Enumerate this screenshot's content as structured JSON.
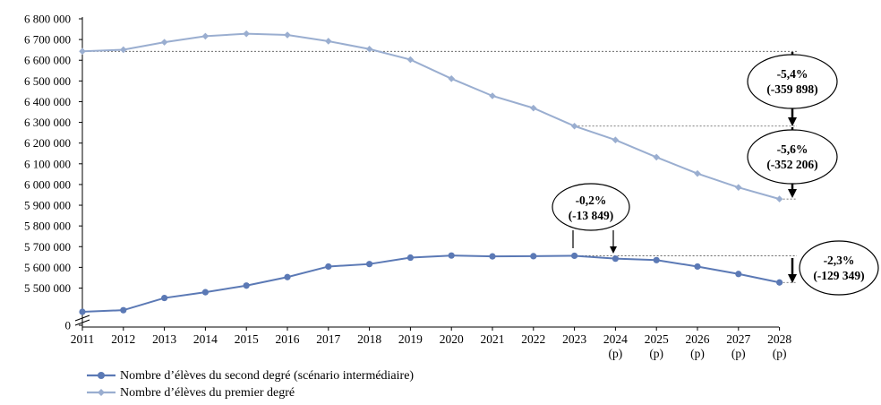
{
  "chart_data": {
    "type": "line",
    "x_labels": [
      {
        "year": "2011",
        "sub": ""
      },
      {
        "year": "2012",
        "sub": ""
      },
      {
        "year": "2013",
        "sub": ""
      },
      {
        "year": "2014",
        "sub": ""
      },
      {
        "year": "2015",
        "sub": ""
      },
      {
        "year": "2016",
        "sub": ""
      },
      {
        "year": "2017",
        "sub": ""
      },
      {
        "year": "2018",
        "sub": ""
      },
      {
        "year": "2019",
        "sub": ""
      },
      {
        "year": "2020",
        "sub": ""
      },
      {
        "year": "2021",
        "sub": ""
      },
      {
        "year": "2022",
        "sub": ""
      },
      {
        "year": "2023",
        "sub": ""
      },
      {
        "year": "2024",
        "sub": "(p)"
      },
      {
        "year": "2025",
        "sub": "(p)"
      },
      {
        "year": "2026",
        "sub": "(p)"
      },
      {
        "year": "2027",
        "sub": "(p)"
      },
      {
        "year": "2028",
        "sub": "(p)"
      }
    ],
    "y_ticks": [
      "0",
      "5 500 000",
      "5 600 000",
      "5 700 000",
      "5 800 000",
      "5 900 000",
      "6 000 000",
      "6 100 000",
      "6 200 000",
      "6 300 000",
      "6 400 000",
      "6 500 000",
      "6 600 000",
      "6 700 000",
      "6 800 000"
    ],
    "y_tick_values": [
      0,
      5500000,
      5600000,
      5700000,
      5800000,
      5900000,
      6000000,
      6100000,
      6200000,
      6300000,
      6400000,
      6500000,
      6600000,
      6700000,
      6800000
    ],
    "ylim": [
      5400000,
      6800000
    ],
    "axis_break": true,
    "series": [
      {
        "name": "Nombre d’élèves du second degré (scénario intermédiaire)",
        "color": "#5b79b5",
        "marker": "circle",
        "values": [
          5385000,
          5393000,
          5452000,
          5480000,
          5512000,
          5553000,
          5604000,
          5616000,
          5647000,
          5657000,
          5653000,
          5654000,
          5656000,
          5642000,
          5635000,
          5604000,
          5568000,
          5527000
        ]
      },
      {
        "name": "Nombre d’élèves du premier degré",
        "color": "#9aaed0",
        "marker": "diamond",
        "values": [
          6643000,
          6651000,
          6687000,
          6716000,
          6728000,
          6722000,
          6692000,
          6654000,
          6603000,
          6511000,
          6428000,
          6369000,
          6282000,
          6215000,
          6132000,
          6053000,
          5986000,
          5930000
        ]
      }
    ],
    "annotations": [
      {
        "pct": "-5,4%",
        "abs": "(-359 898)"
      },
      {
        "pct": "-5,6%",
        "abs": "(-352 206)"
      },
      {
        "pct": "-0,2%",
        "abs": "(-13 849)"
      },
      {
        "pct": "-2,3%",
        "abs": "(-129 349)"
      }
    ]
  }
}
